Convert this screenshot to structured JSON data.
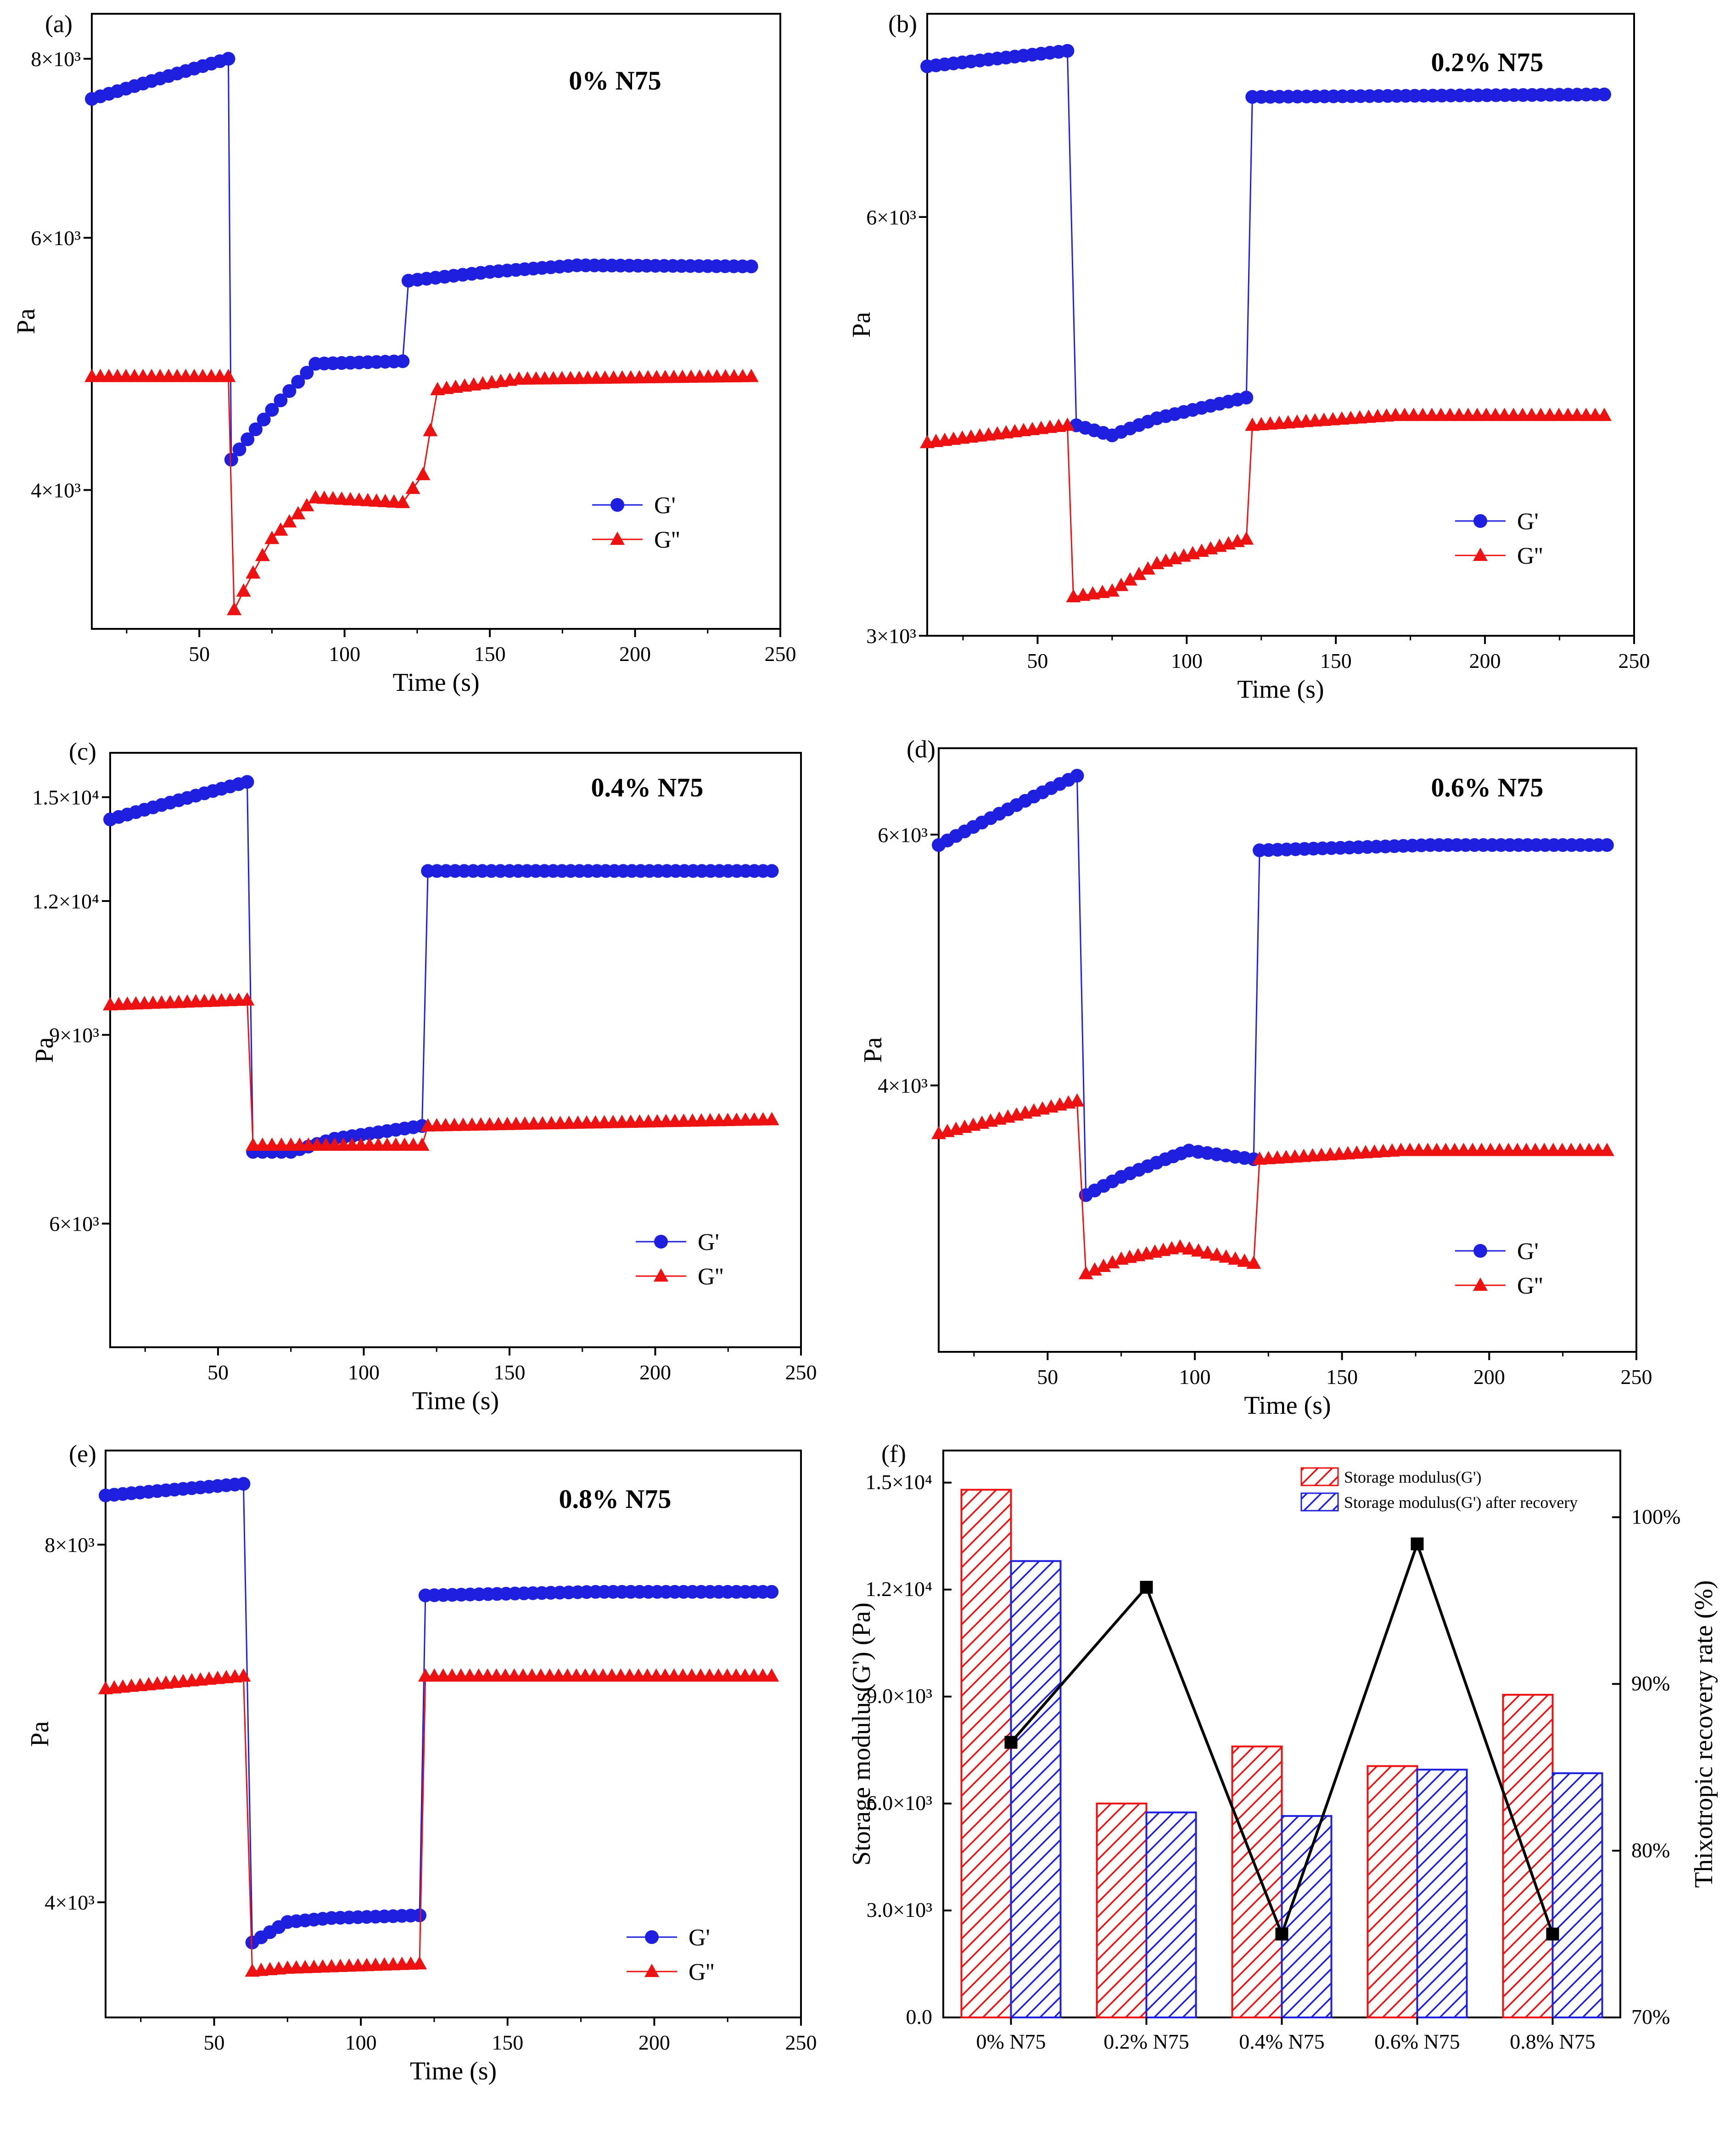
{
  "figure": {
    "colors": {
      "gprime": "#1f1fe0",
      "gdouble": "#ee1111",
      "bar_red": "#ee1111",
      "bar_blue": "#1f1fe0",
      "line": "#000000"
    }
  },
  "chart_data": [
    {
      "id": "a",
      "type": "line",
      "panel_label": "(a)",
      "title": "0% N75",
      "xlabel": "Time (s)",
      "ylabel": "Pa",
      "xlim": [
        13,
        250
      ],
      "ylim": [
        3200,
        8600
      ],
      "xticks": [
        50,
        100,
        150,
        200,
        250
      ],
      "yticks": [
        {
          "value": 4000,
          "label": "4×10³"
        },
        {
          "value": 6000,
          "label": "6×10³"
        },
        {
          "value": 8000,
          "label": "8×10³"
        }
      ],
      "legend": "lower-right",
      "series": [
        {
          "name": "G'",
          "marker": "circle",
          "points": [
            [
              13,
              7500
            ],
            [
              60,
              8000
            ],
            [
              61,
              4200
            ],
            [
              75,
              4550
            ],
            [
              90,
              4900
            ],
            [
              120,
              4920
            ],
            [
              122,
              5600
            ],
            [
              150,
              5680
            ],
            [
              180,
              5740
            ],
            [
              240,
              5730
            ]
          ]
        },
        {
          "name": "G''",
          "marker": "triangle",
          "points": [
            [
              13,
              4800
            ],
            [
              60,
              4800
            ],
            [
              62,
              3300
            ],
            [
              75,
              3700
            ],
            [
              90,
              3950
            ],
            [
              120,
              3920
            ],
            [
              127,
              4100
            ],
            [
              132,
              4700
            ],
            [
              160,
              4780
            ],
            [
              240,
              4800
            ]
          ]
        }
      ]
    },
    {
      "id": "b",
      "type": "line",
      "panel_label": "(b)",
      "title": "0.2% N75",
      "xlabel": "Time (s)",
      "ylabel": "Pa",
      "xlim": [
        13,
        250
      ],
      "ylim": [
        3000,
        8400
      ],
      "xticks": [
        50,
        100,
        150,
        200,
        250
      ],
      "yticks": [
        {
          "value": 3000,
          "label": "3×10³"
        },
        {
          "value": 6000,
          "label": "6×10³"
        }
      ],
      "legend": "lower-right",
      "series": [
        {
          "name": "G'",
          "marker": "circle",
          "points": [
            [
              13,
              7700
            ],
            [
              60,
              7900
            ],
            [
              63,
              4250
            ],
            [
              75,
              4180
            ],
            [
              90,
              4300
            ],
            [
              120,
              4450
            ],
            [
              122,
              7320
            ],
            [
              240,
              7350
            ]
          ]
        },
        {
          "name": "G''",
          "marker": "triangle",
          "points": [
            [
              13,
              4130
            ],
            [
              60,
              4250
            ],
            [
              62,
              3200
            ],
            [
              75,
              3230
            ],
            [
              90,
              3380
            ],
            [
              120,
              3520
            ],
            [
              122,
              4250
            ],
            [
              170,
              4320
            ],
            [
              240,
              4320
            ]
          ]
        }
      ]
    },
    {
      "id": "c",
      "type": "line",
      "panel_label": "(c)",
      "title": "0.4% N75",
      "xlabel": "Time (s)",
      "ylabel": "Pa",
      "xlim": [
        13,
        250
      ],
      "ylim": [
        4600,
        16500
      ],
      "xticks": [
        50,
        100,
        150,
        200,
        250
      ],
      "yticks": [
        {
          "value": 6000,
          "label": "6×10³"
        },
        {
          "value": 9000,
          "label": "9×10³"
        },
        {
          "value": 12000,
          "label": "1.2×10⁴"
        },
        {
          "value": 15000,
          "label": "1.5×10⁴"
        }
      ],
      "legend": "lower-right",
      "series": [
        {
          "name": "G'",
          "marker": "circle",
          "points": [
            [
              13,
              14300
            ],
            [
              60,
              15500
            ],
            [
              62,
              7000
            ],
            [
              75,
              7000
            ],
            [
              90,
              7200
            ],
            [
              120,
              7400
            ],
            [
              122,
              12800
            ],
            [
              150,
              12800
            ],
            [
              240,
              12800
            ]
          ]
        },
        {
          "name": "G''",
          "marker": "triangle",
          "points": [
            [
              13,
              9600
            ],
            [
              60,
              9700
            ],
            [
              62,
              7100
            ],
            [
              75,
              7100
            ],
            [
              90,
              7100
            ],
            [
              120,
              7100
            ],
            [
              122,
              7400
            ],
            [
              240,
              7500
            ]
          ]
        }
      ]
    },
    {
      "id": "d",
      "type": "line",
      "panel_label": "(d)",
      "title": "0.6% N75",
      "xlabel": "Time (s)",
      "ylabel": "Pa",
      "xlim": [
        13,
        250
      ],
      "ylim": [
        2600,
        6900
      ],
      "xticks": [
        50,
        100,
        150,
        200,
        250
      ],
      "yticks": [
        {
          "value": 4000,
          "label": "4×10³"
        },
        {
          "value": 6000,
          "label": "6×10³"
        }
      ],
      "legend": "lower-right",
      "series": [
        {
          "name": "G'",
          "marker": "circle",
          "points": [
            [
              13,
              5900
            ],
            [
              60,
              6600
            ],
            [
              63,
              3350
            ],
            [
              75,
              3450
            ],
            [
              90,
              3550
            ],
            [
              98,
              3600
            ],
            [
              120,
              3550
            ],
            [
              122,
              5850
            ],
            [
              180,
              5900
            ],
            [
              240,
              5900
            ]
          ]
        },
        {
          "name": "G''",
          "marker": "triangle",
          "points": [
            [
              13,
              3700
            ],
            [
              60,
              3900
            ],
            [
              63,
              2950
            ],
            [
              75,
              3020
            ],
            [
              95,
              3080
            ],
            [
              120,
              3000
            ],
            [
              122,
              3550
            ],
            [
              170,
              3600
            ],
            [
              240,
              3600
            ]
          ]
        }
      ]
    },
    {
      "id": "e",
      "type": "line",
      "panel_label": "(e)",
      "title": "0.8% N75",
      "xlabel": "Time (s)",
      "ylabel": "Pa",
      "xlim": [
        13,
        250
      ],
      "ylim": [
        3200,
        9600
      ],
      "xticks": [
        50,
        100,
        150,
        200,
        250
      ],
      "yticks": [
        {
          "value": 4000,
          "label": "4×10³"
        },
        {
          "value": 8000,
          "label": "8×10³"
        }
      ],
      "legend": "lower-right",
      "series": [
        {
          "name": "G'",
          "marker": "circle",
          "points": [
            [
              13,
              8800
            ],
            [
              60,
              9000
            ],
            [
              63,
              3700
            ],
            [
              75,
              3850
            ],
            [
              90,
              3880
            ],
            [
              120,
              3900
            ],
            [
              122,
              7250
            ],
            [
              180,
              7300
            ],
            [
              240,
              7300
            ]
          ]
        },
        {
          "name": "G''",
          "marker": "triangle",
          "points": [
            [
              13,
              6050
            ],
            [
              60,
              6200
            ],
            [
              63,
              3500
            ],
            [
              75,
              3520
            ],
            [
              120,
              3550
            ],
            [
              122,
              6200
            ],
            [
              240,
              6200
            ]
          ]
        }
      ]
    },
    {
      "id": "f",
      "type": "bar",
      "panel_label": "(f)",
      "categories": [
        "0% N75",
        "0.2% N75",
        "0.4% N75",
        "0.6% N75",
        "0.8% N75"
      ],
      "series": [
        {
          "name": "Storage modulus(G')",
          "pattern": "hatch",
          "values": [
            14800,
            6000,
            7600,
            7050,
            9050
          ]
        },
        {
          "name": "Storage modulus(G') after recovery",
          "pattern": "hatch",
          "values": [
            12800,
            5750,
            5650,
            6950,
            6850
          ]
        }
      ],
      "line_series": {
        "name": "Thixotropic recovery rate",
        "values": [
          86.5,
          95.8,
          75.0,
          98.4,
          75.0
        ]
      },
      "ylabel": "Storage modulus(G') (Pa)",
      "y2label": "Thixotropic recovery rate (%)",
      "ylim": [
        0,
        15900
      ],
      "y2lim": [
        70,
        104
      ],
      "yticks": [
        {
          "value": 0,
          "label": "0.0"
        },
        {
          "value": 3000,
          "label": "3.0×10³"
        },
        {
          "value": 6000,
          "label": "6.0×10³"
        },
        {
          "value": 9000,
          "label": "9.0×10³"
        },
        {
          "value": 12000,
          "label": "1.2×10⁴"
        },
        {
          "value": 15000,
          "label": "1.5×10⁴"
        }
      ],
      "y2ticks": [
        {
          "value": 70,
          "label": "70%"
        },
        {
          "value": 80,
          "label": "80%"
        },
        {
          "value": 90,
          "label": "90%"
        },
        {
          "value": 100,
          "label": "100%"
        }
      ],
      "legend": "top-right"
    }
  ]
}
